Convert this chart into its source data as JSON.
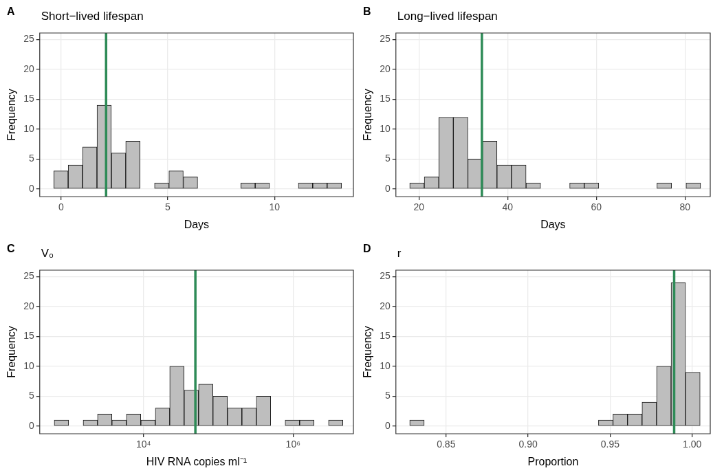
{
  "chart_data": [
    {
      "type": "histogram",
      "title": "Short−lived lifespan",
      "xlabel": "Days",
      "ylabel": "Frequency",
      "annotations": [
        "A"
      ],
      "color": "#bebebe",
      "bins": [
        -0.34,
        0.33,
        1.01,
        1.68,
        2.36,
        3.03,
        3.7,
        4.38,
        5.05,
        5.73,
        6.4,
        7.07,
        7.75,
        8.42,
        9.1,
        9.77,
        10.44,
        11.12,
        11.79,
        12.47,
        13.14
      ],
      "values": [
        3,
        4,
        7,
        14,
        6,
        8,
        0,
        1,
        3,
        2,
        0,
        0,
        0,
        1,
        1,
        0,
        0,
        1,
        1,
        1
      ],
      "xlim": [
        -1.0,
        13.7
      ],
      "xticks": [
        0,
        5,
        10
      ],
      "ylim": [
        -1.3,
        26.1
      ],
      "yticks": [
        0,
        5,
        10,
        15,
        20,
        25
      ],
      "grid": true,
      "ref_lines": [
        {
          "axis": "x",
          "value": 2.11,
          "color": "#2e8b57"
        }
      ]
    },
    {
      "type": "histogram",
      "title": "Long−lived lifespan",
      "xlabel": "Days",
      "ylabel": "Frequency",
      "annotations": [
        "B"
      ],
      "color": "#bebebe",
      "bins": [
        17.92,
        21.2,
        24.48,
        27.76,
        31.04,
        34.32,
        37.6,
        40.88,
        44.16,
        47.44,
        50.72,
        54.0,
        57.28,
        60.56,
        63.84,
        67.12,
        70.4,
        73.68,
        76.96,
        80.24,
        83.52
      ],
      "values": [
        1,
        2,
        12,
        12,
        5,
        8,
        4,
        4,
        1,
        0,
        0,
        1,
        1,
        0,
        0,
        0,
        0,
        1,
        0,
        1
      ],
      "xlim": [
        14.8,
        85.7
      ],
      "xticks": [
        20,
        40,
        60,
        80
      ],
      "ylim": [
        -1.3,
        26.1
      ],
      "yticks": [
        0,
        5,
        10,
        15,
        20,
        25
      ],
      "grid": true,
      "ref_lines": [
        {
          "axis": "x",
          "value": 34.2,
          "color": "#2e8b57"
        }
      ]
    },
    {
      "type": "histogram",
      "title": "V₀",
      "xlabel": "HIV RNA copies ml⁻¹",
      "ylabel": "Frequency",
      "annotations": [
        "C"
      ],
      "color": "#bebebe",
      "log": "x",
      "bins": [
        640,
        1000,
        1560,
        2430,
        3780,
        5900,
        9200,
        14400,
        22400,
        34900,
        54500,
        84900,
        132000,
        207000,
        322000,
        502000,
        783000,
        1220000,
        1910000,
        2970000,
        4630000
      ],
      "values": [
        1,
        0,
        1,
        2,
        1,
        2,
        1,
        3,
        10,
        6,
        7,
        5,
        3,
        3,
        5,
        0,
        1,
        1,
        0,
        1
      ],
      "xlim": [
        410,
        6400000
      ],
      "xticks": [
        {
          "value": 10000,
          "label": "10⁴"
        },
        {
          "value": 1000000,
          "label": "10⁶"
        }
      ],
      "ylim": [
        -1.3,
        26.1
      ],
      "yticks": [
        0,
        5,
        10,
        15,
        20,
        25
      ],
      "grid": true,
      "ref_lines": [
        {
          "axis": "x",
          "value": 49400,
          "color": "#2e8b57"
        }
      ]
    },
    {
      "type": "histogram",
      "title": "r",
      "xlabel": "Proportion",
      "ylabel": "Frequency",
      "annotations": [
        "D"
      ],
      "color": "#bebebe",
      "bins": [
        0.8278,
        0.8367,
        0.8455,
        0.8544,
        0.8632,
        0.8721,
        0.8809,
        0.8898,
        0.8986,
        0.9075,
        0.9163,
        0.9252,
        0.934,
        0.9429,
        0.9517,
        0.9606,
        0.9694,
        0.9783,
        0.9871,
        0.996,
        1.0048
      ],
      "values": [
        1,
        0,
        0,
        0,
        0,
        0,
        0,
        0,
        0,
        0,
        0,
        0,
        0,
        1,
        2,
        2,
        4,
        10,
        24,
        9
      ],
      "xlim": [
        0.8194,
        1.011
      ],
      "xticks": [
        {
          "value": 0.85,
          "label": "0.85"
        },
        {
          "value": 0.9,
          "label": "0.90"
        },
        {
          "value": 0.95,
          "label": "0.95"
        },
        {
          "value": 1.0,
          "label": "1.00"
        }
      ],
      "ylim": [
        -1.3,
        26.1
      ],
      "yticks": [
        0,
        5,
        10,
        15,
        20,
        25
      ],
      "grid": true,
      "ref_lines": [
        {
          "axis": "x",
          "value": 0.989,
          "color": "#2e8b57"
        }
      ]
    }
  ]
}
